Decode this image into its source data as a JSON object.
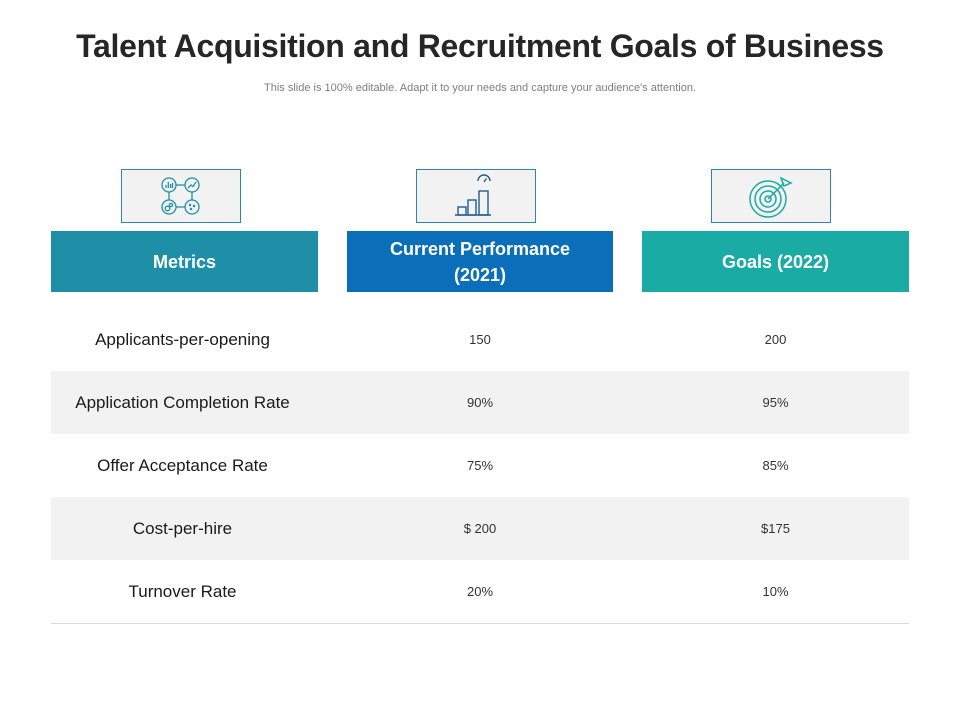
{
  "title": "Talent Acquisition and Recruitment Goals of Business",
  "subtitle": "This slide is 100% editable. Adapt it to your needs and capture your audience's attention.",
  "icons": [
    "analytics-dashboard-icon",
    "growth-bar-chart-icon",
    "target-icon"
  ],
  "colors": {
    "metrics_header": "#1f8fa8",
    "current_header": "#0a6eb8",
    "goals_header": "#1aaba5",
    "row_shade": "#f2f2f2"
  },
  "headers": {
    "metrics": "Metrics",
    "current": "Current Performance (2021)",
    "goals": "Goals (2022)"
  },
  "rows": [
    {
      "metric": "Applicants-per-opening",
      "current": "150",
      "goal": "200"
    },
    {
      "metric": "Application Completion Rate",
      "current": "90%",
      "goal": "95%"
    },
    {
      "metric": "Offer Acceptance Rate",
      "current": "75%",
      "goal": "85%"
    },
    {
      "metric": "Cost-per-hire",
      "current": "$ 200",
      "goal": "$175"
    },
    {
      "metric": "Turnover Rate",
      "current": "20%",
      "goal": "10%"
    }
  ]
}
